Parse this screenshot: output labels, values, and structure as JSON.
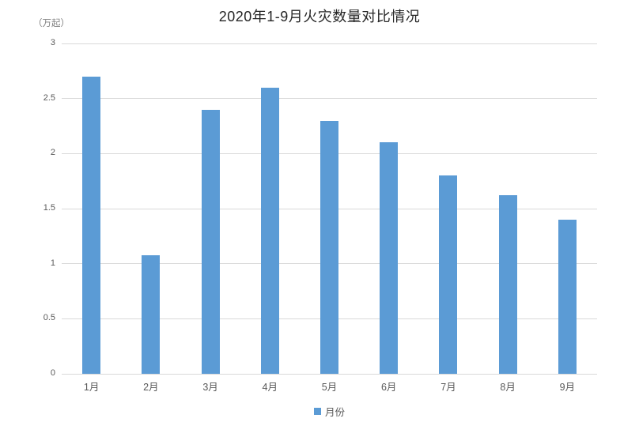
{
  "chart_data": {
    "type": "bar",
    "title": "2020年1-9月火灾数量对比情况",
    "unit_label": "（万起）",
    "legend": "月份",
    "legend_position": "bottom-center",
    "categories": [
      "1月",
      "2月",
      "3月",
      "4月",
      "5月",
      "6月",
      "7月",
      "8月",
      "9月"
    ],
    "series": [
      {
        "name": "月份",
        "values": [
          2.7,
          1.08,
          2.4,
          2.6,
          2.3,
          2.1,
          1.8,
          1.62,
          1.4
        ]
      }
    ],
    "xlabel": "",
    "ylabel": "（万起）",
    "ylim": [
      0,
      3
    ],
    "yticks": [
      0,
      0.5,
      1,
      1.5,
      2,
      2.5,
      3
    ],
    "grid": true,
    "bar_color": "#5B9BD5",
    "gridline_color": "#D9D9D9",
    "axis_text_color": "#595959",
    "title_color": "#262626"
  }
}
